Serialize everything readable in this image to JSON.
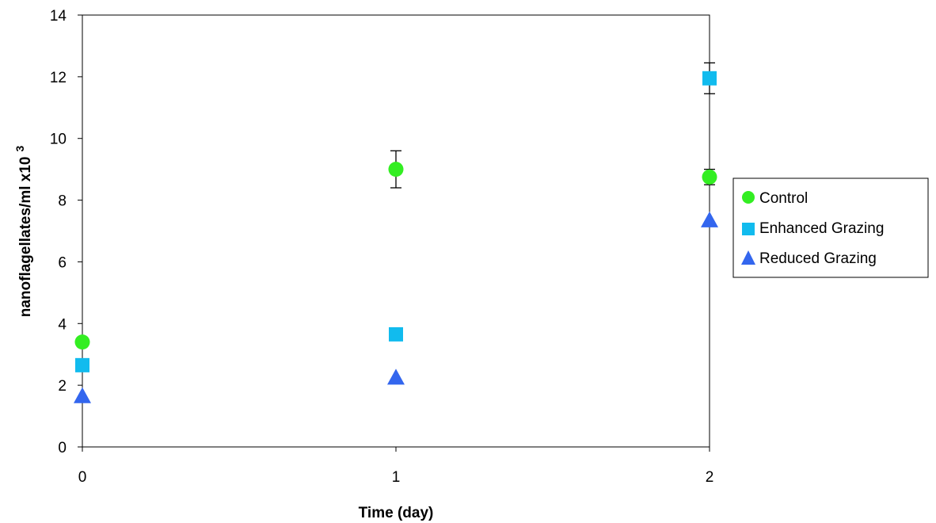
{
  "chart_data": {
    "type": "scatter",
    "title": "",
    "xlabel": "Time (day)",
    "ylabel": "nanoflagellates/ml x10",
    "ylabel_superscript": "3",
    "x_ticks": [
      0,
      1,
      2
    ],
    "y_ticks": [
      0,
      2,
      4,
      6,
      8,
      10,
      12,
      14
    ],
    "xlim": [
      0,
      2
    ],
    "ylim": [
      0,
      14
    ],
    "grid": false,
    "legend_position": "right",
    "series": [
      {
        "name": "Control",
        "marker": "circle",
        "color": "#33ee22",
        "x": [
          0,
          1,
          2
        ],
        "y": [
          3.4,
          9.0,
          8.75
        ],
        "error": [
          0.15,
          0.6,
          0.25
        ]
      },
      {
        "name": "Enhanced Grazing",
        "marker": "square",
        "color": "#11bbee",
        "x": [
          0,
          1,
          2
        ],
        "y": [
          2.65,
          3.65,
          11.95
        ],
        "error": [
          0,
          0,
          0.5
        ]
      },
      {
        "name": "Reduced Grazing",
        "marker": "triangle",
        "color": "#3366ee",
        "x": [
          0,
          1,
          2
        ],
        "y": [
          1.65,
          2.25,
          7.35
        ],
        "error": [
          0,
          0,
          0
        ]
      }
    ]
  }
}
